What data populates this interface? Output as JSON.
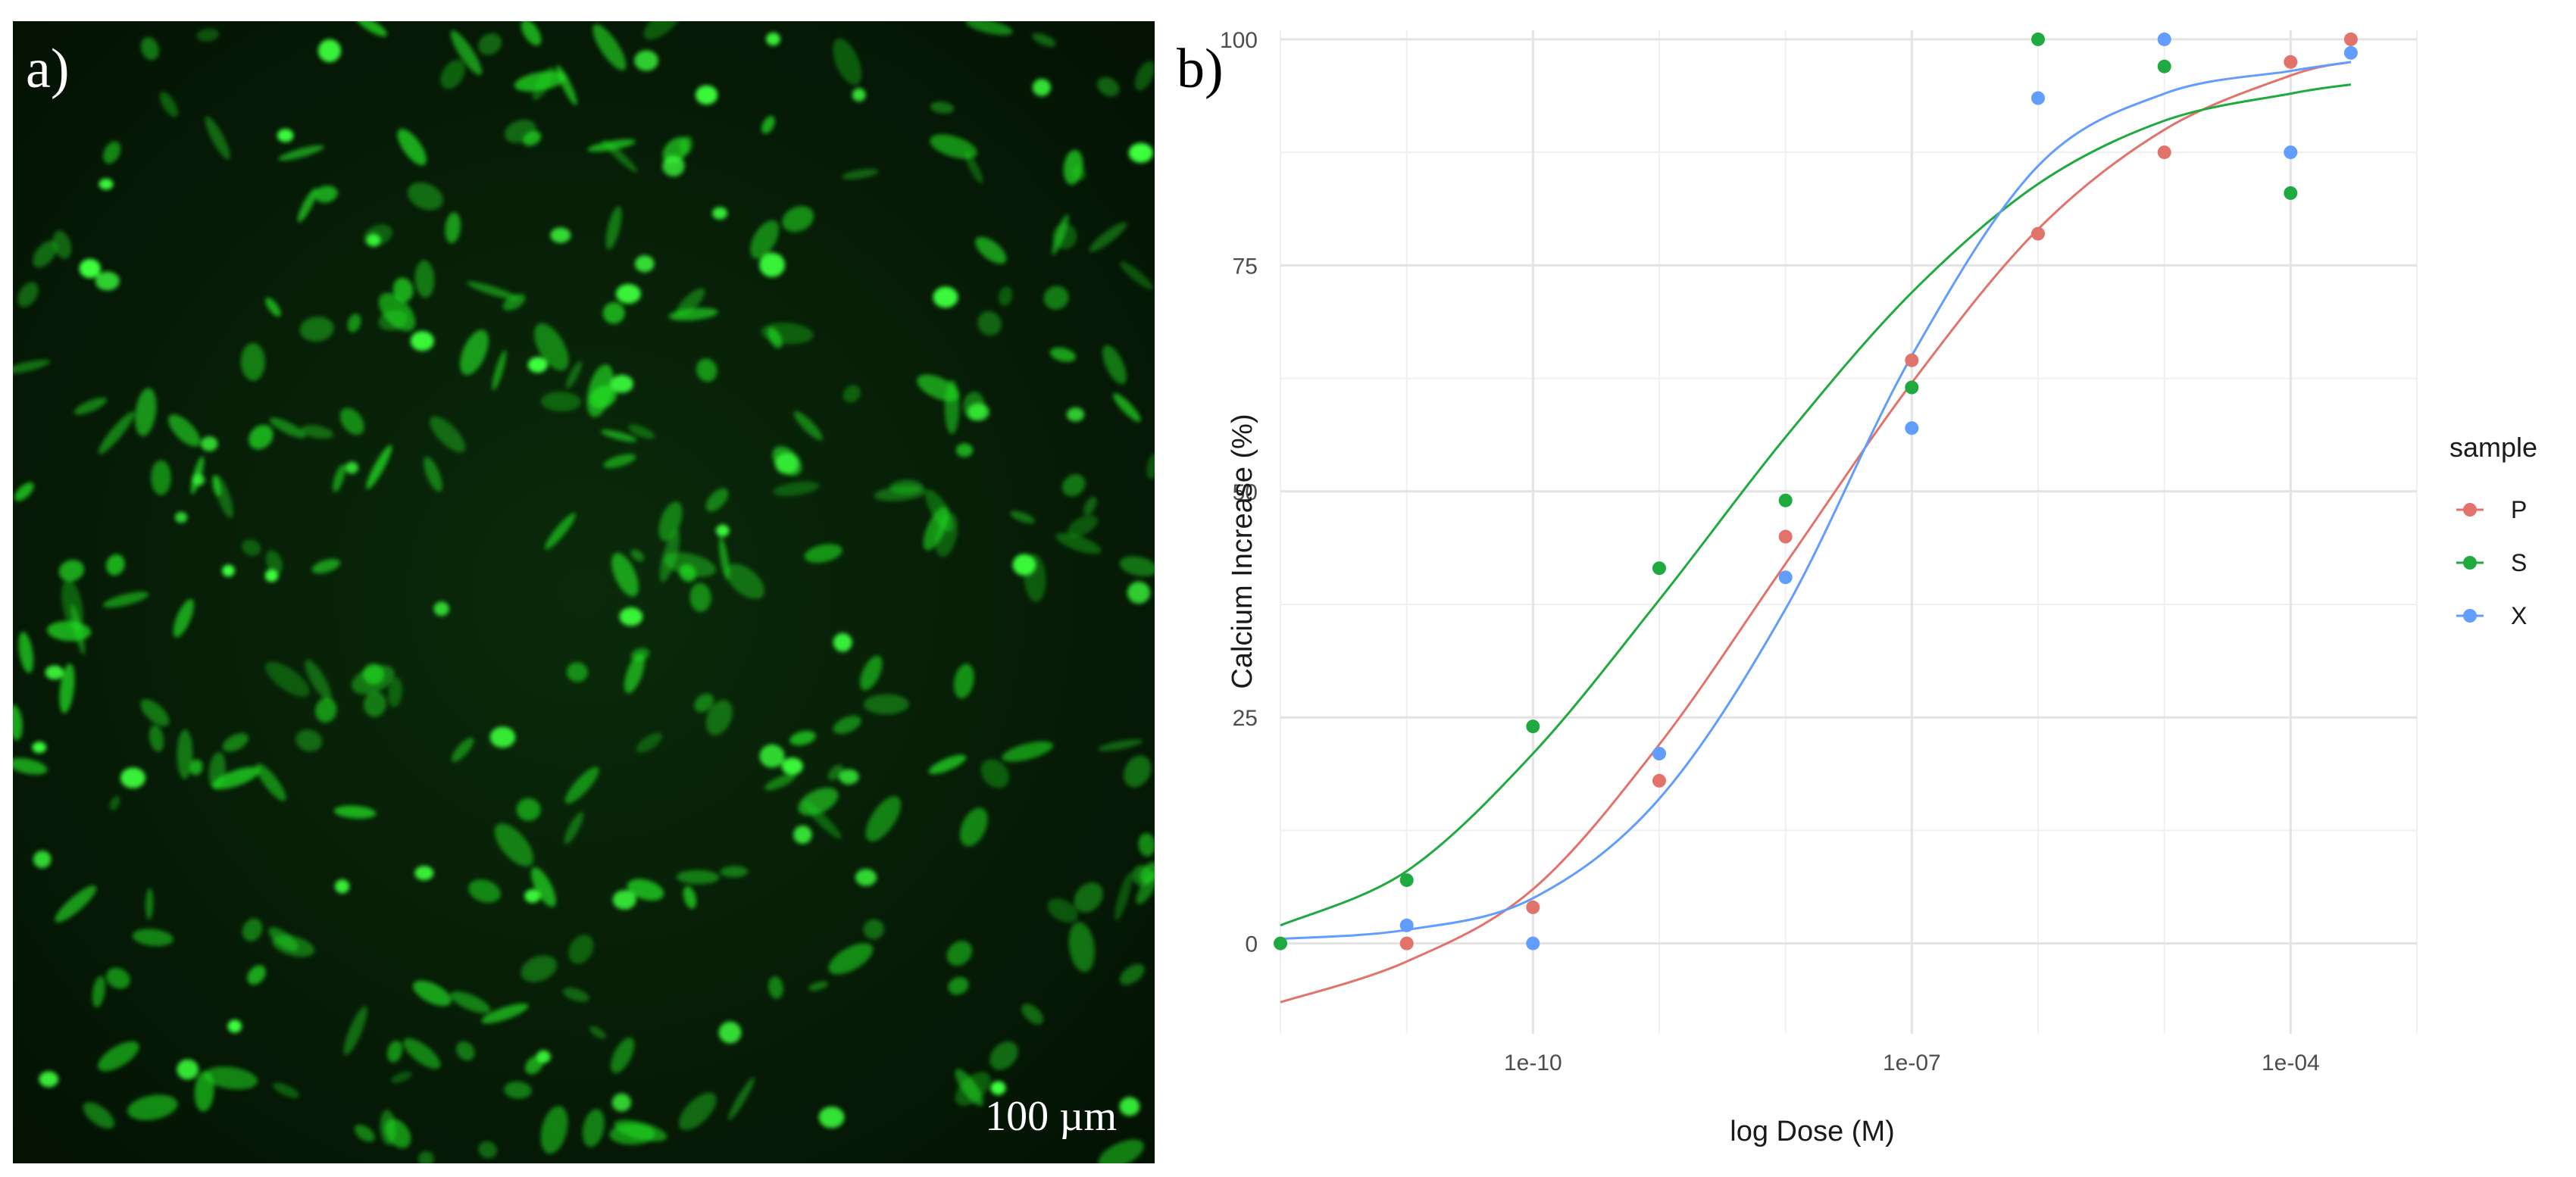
{
  "panels": {
    "a_label": "a)",
    "b_label": "b)"
  },
  "micrograph": {
    "scale_bar_text": "100 µm",
    "cell_color": "#22e022",
    "background_color": "#061806"
  },
  "chart_data": {
    "type": "scatter",
    "xlabel": "log Dose (M)",
    "ylabel": "Calcium Increase (%)",
    "x_scale": "log10",
    "xlim": [
      1e-12,
      0.001
    ],
    "ylim": [
      -10,
      101
    ],
    "x_ticks": [
      1e-10,
      1e-07,
      0.0001
    ],
    "x_tick_labels": [
      "1e-10",
      "1e-07",
      "1e-04"
    ],
    "y_ticks": [
      0,
      25,
      50,
      75,
      100
    ],
    "y_tick_labels": [
      "0",
      "25",
      "50",
      "75",
      "100"
    ],
    "grid": true,
    "legend": {
      "title": "sample",
      "position": "right"
    },
    "series": [
      {
        "name": "P",
        "color": "#e2736b",
        "points": [
          {
            "x": 1e-11,
            "y": 0
          },
          {
            "x": 1e-10,
            "y": 4
          },
          {
            "x": 1e-09,
            "y": 18
          },
          {
            "x": 1e-08,
            "y": 45
          },
          {
            "x": 1e-07,
            "y": 64.5
          },
          {
            "x": 1e-06,
            "y": 78.5
          },
          {
            "x": 1e-05,
            "y": 87.5
          },
          {
            "x": 0.0001,
            "y": 97.5
          },
          {
            "x": 0.0003,
            "y": 100
          }
        ],
        "fit": [
          {
            "x": 1e-12,
            "y": -6.5
          },
          {
            "x": 1e-11,
            "y": -2
          },
          {
            "x": 1e-10,
            "y": 6
          },
          {
            "x": 1e-09,
            "y": 22
          },
          {
            "x": 1e-08,
            "y": 42
          },
          {
            "x": 1e-07,
            "y": 62
          },
          {
            "x": 1e-06,
            "y": 79
          },
          {
            "x": 1e-05,
            "y": 90
          },
          {
            "x": 0.0001,
            "y": 96
          },
          {
            "x": 0.0003,
            "y": 97.5
          }
        ]
      },
      {
        "name": "S",
        "color": "#1faa3f",
        "points": [
          {
            "x": 1e-12,
            "y": 0
          },
          {
            "x": 1e-11,
            "y": 7
          },
          {
            "x": 1e-10,
            "y": 24
          },
          {
            "x": 1e-09,
            "y": 41.5
          },
          {
            "x": 1e-08,
            "y": 49
          },
          {
            "x": 1e-07,
            "y": 61.5
          },
          {
            "x": 1e-06,
            "y": 100
          },
          {
            "x": 1e-05,
            "y": 97
          },
          {
            "x": 0.0001,
            "y": 83
          }
        ],
        "fit": [
          {
            "x": 1e-12,
            "y": 2
          },
          {
            "x": 1e-11,
            "y": 8
          },
          {
            "x": 1e-10,
            "y": 21
          },
          {
            "x": 1e-09,
            "y": 38
          },
          {
            "x": 1e-08,
            "y": 56
          },
          {
            "x": 1e-07,
            "y": 72
          },
          {
            "x": 1e-06,
            "y": 84
          },
          {
            "x": 1e-05,
            "y": 91
          },
          {
            "x": 0.0001,
            "y": 94
          },
          {
            "x": 0.0003,
            "y": 95
          }
        ]
      },
      {
        "name": "X",
        "color": "#619cff",
        "points": [
          {
            "x": 1e-11,
            "y": 2
          },
          {
            "x": 1e-10,
            "y": 0
          },
          {
            "x": 1e-09,
            "y": 21
          },
          {
            "x": 1e-08,
            "y": 40.5
          },
          {
            "x": 1e-07,
            "y": 57
          },
          {
            "x": 1e-06,
            "y": 93.5
          },
          {
            "x": 1e-05,
            "y": 100
          },
          {
            "x": 0.0001,
            "y": 87.5
          },
          {
            "x": 0.0003,
            "y": 98.5
          }
        ],
        "fit": [
          {
            "x": 1e-12,
            "y": 0.5
          },
          {
            "x": 1e-11,
            "y": 1.5
          },
          {
            "x": 1e-10,
            "y": 5
          },
          {
            "x": 1e-09,
            "y": 16
          },
          {
            "x": 1e-08,
            "y": 37
          },
          {
            "x": 1e-07,
            "y": 65
          },
          {
            "x": 1e-06,
            "y": 86
          },
          {
            "x": 1e-05,
            "y": 94
          },
          {
            "x": 0.0001,
            "y": 96.5
          },
          {
            "x": 0.0003,
            "y": 97.5
          }
        ]
      }
    ]
  }
}
